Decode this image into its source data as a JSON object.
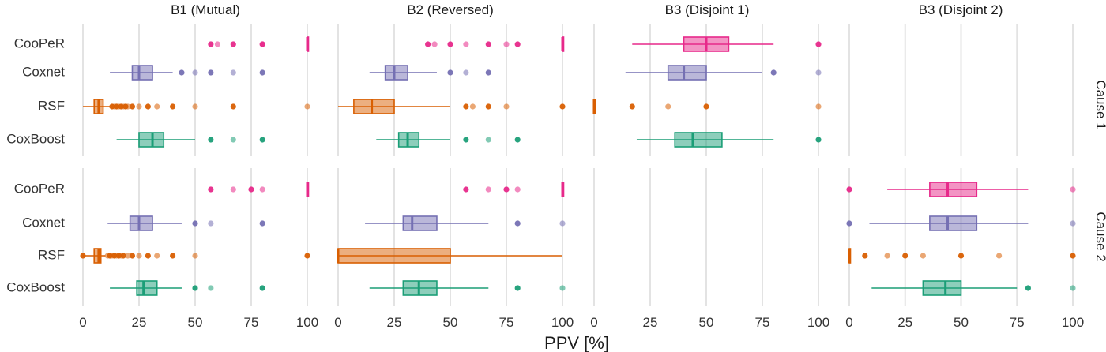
{
  "chart_data": {
    "type": "boxplot",
    "xlabel": "PPV [%]",
    "xlim": [
      0,
      100
    ],
    "xticks": [
      "0",
      "25",
      "50",
      "75",
      "100"
    ],
    "panels": [
      "B1 (Mutual)",
      "B2 (Reversed)",
      "B3 (Disjoint 1)",
      "B3 (Disjoint 2)"
    ],
    "rows": [
      "Cause 1",
      "Cause 2"
    ],
    "methods": [
      "CooPeR",
      "Coxnet",
      "RSF",
      "CoxBoost"
    ],
    "colors": {
      "CooPeR": "#e7298a",
      "Coxnet": "#7570b3",
      "RSF": "#d95f02",
      "CoxBoost": "#1b9e77"
    },
    "boxes": [
      {
        "panel": 0,
        "row": 0,
        "method": "CooPeR",
        "min": 100,
        "q1": 100,
        "median": 100,
        "q3": 100,
        "max": 100,
        "outliers": [
          57,
          60,
          67,
          80,
          80
        ]
      },
      {
        "panel": 0,
        "row": 0,
        "method": "Coxnet",
        "min": 12,
        "q1": 22,
        "median": 25,
        "q3": 31,
        "max": 40,
        "outliers": [
          44,
          50,
          57,
          67,
          80
        ]
      },
      {
        "panel": 0,
        "row": 0,
        "method": "RSF",
        "min": 0,
        "q1": 5,
        "median": 7,
        "q3": 9,
        "max": 12,
        "outliers": [
          13,
          14,
          15,
          16,
          17,
          18,
          19,
          20,
          22,
          25,
          29,
          33,
          40,
          50,
          67,
          100
        ]
      },
      {
        "panel": 0,
        "row": 0,
        "method": "CoxBoost",
        "min": 15,
        "q1": 25,
        "median": 31,
        "q3": 36,
        "max": 50,
        "outliers": [
          57,
          67,
          80
        ]
      },
      {
        "panel": 1,
        "row": 0,
        "method": "CooPeR",
        "min": 100,
        "q1": 100,
        "median": 100,
        "q3": 100,
        "max": 100,
        "outliers": [
          40,
          43,
          50,
          57,
          67,
          75,
          80
        ]
      },
      {
        "panel": 1,
        "row": 0,
        "method": "Coxnet",
        "min": 14,
        "q1": 21,
        "median": 25,
        "q3": 31,
        "max": 44,
        "outliers": [
          50,
          57,
          67
        ]
      },
      {
        "panel": 1,
        "row": 0,
        "method": "RSF",
        "min": 0,
        "q1": 7,
        "median": 15,
        "q3": 25,
        "max": 50,
        "outliers": [
          57,
          60,
          67,
          75,
          100
        ]
      },
      {
        "panel": 1,
        "row": 0,
        "method": "CoxBoost",
        "min": 17,
        "q1": 27,
        "median": 31,
        "q3": 36,
        "max": 50,
        "outliers": [
          57,
          67,
          80
        ]
      },
      {
        "panel": 2,
        "row": 0,
        "method": "CooPeR",
        "min": 17,
        "q1": 40,
        "median": 50,
        "q3": 60,
        "max": 80,
        "outliers": [
          100
        ]
      },
      {
        "panel": 2,
        "row": 0,
        "method": "Coxnet",
        "min": 14,
        "q1": 33,
        "median": 40,
        "q3": 50,
        "max": 75,
        "outliers": [
          80,
          100
        ]
      },
      {
        "panel": 2,
        "row": 0,
        "method": "RSF",
        "min": 0,
        "q1": 0,
        "median": 0,
        "q3": 0,
        "max": 0,
        "outliers": [
          17,
          33,
          50,
          100
        ]
      },
      {
        "panel": 2,
        "row": 0,
        "method": "CoxBoost",
        "min": 19,
        "q1": 36,
        "median": 44,
        "q3": 57,
        "max": 80,
        "outliers": [
          100
        ]
      },
      {
        "panel": 0,
        "row": 1,
        "method": "CooPeR",
        "min": 100,
        "q1": 100,
        "median": 100,
        "q3": 100,
        "max": 100,
        "outliers": [
          57,
          67,
          75,
          80
        ]
      },
      {
        "panel": 0,
        "row": 1,
        "method": "Coxnet",
        "min": 11,
        "q1": 21,
        "median": 25,
        "q3": 31,
        "max": 44,
        "outliers": [
          50,
          57,
          80
        ]
      },
      {
        "panel": 0,
        "row": 1,
        "method": "RSF",
        "min": 0,
        "q1": 5,
        "median": 7,
        "q3": 8,
        "max": 10,
        "outliers": [
          0,
          11,
          12,
          13,
          14,
          15,
          16,
          17,
          18,
          20,
          22,
          25,
          29,
          33,
          40,
          50,
          100
        ]
      },
      {
        "panel": 0,
        "row": 1,
        "method": "CoxBoost",
        "min": 12,
        "q1": 24,
        "median": 27,
        "q3": 33,
        "max": 44,
        "outliers": [
          50,
          57,
          80
        ]
      },
      {
        "panel": 1,
        "row": 1,
        "method": "CooPeR",
        "min": 100,
        "q1": 100,
        "median": 100,
        "q3": 100,
        "max": 100,
        "outliers": [
          57,
          67,
          75,
          80
        ]
      },
      {
        "panel": 1,
        "row": 1,
        "method": "Coxnet",
        "min": 12,
        "q1": 29,
        "median": 33,
        "q3": 44,
        "max": 67,
        "outliers": [
          80,
          100
        ]
      },
      {
        "panel": 1,
        "row": 1,
        "method": "RSF",
        "min": 0,
        "q1": 0,
        "median": 0,
        "q3": 50,
        "max": 100,
        "outliers": []
      },
      {
        "panel": 1,
        "row": 1,
        "method": "CoxBoost",
        "min": 14,
        "q1": 29,
        "median": 36,
        "q3": 44,
        "max": 67,
        "outliers": [
          80,
          100
        ]
      },
      {
        "panel": 3,
        "row": 1,
        "method": "CooPeR",
        "min": 17,
        "q1": 36,
        "median": 44,
        "q3": 57,
        "max": 80,
        "outliers": [
          0,
          100
        ]
      },
      {
        "panel": 3,
        "row": 1,
        "method": "Coxnet",
        "min": 9,
        "q1": 36,
        "median": 44,
        "q3": 57,
        "max": 80,
        "outliers": [
          0,
          100
        ]
      },
      {
        "panel": 3,
        "row": 1,
        "method": "RSF",
        "min": 0,
        "q1": 0,
        "median": 0,
        "q3": 0,
        "max": 0,
        "outliers": [
          7,
          17,
          25,
          33,
          50,
          67,
          100
        ]
      },
      {
        "panel": 3,
        "row": 1,
        "method": "CoxBoost",
        "min": 10,
        "q1": 33,
        "median": 43,
        "q3": 50,
        "max": 75,
        "outliers": [
          80,
          100
        ]
      }
    ]
  }
}
